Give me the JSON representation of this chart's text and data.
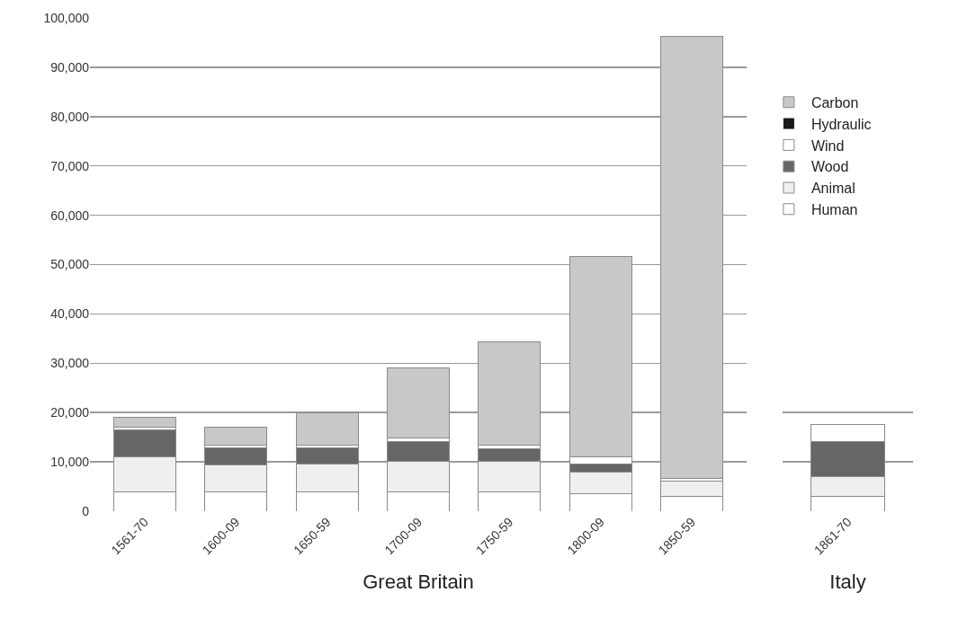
{
  "chart_data": [
    {
      "type": "bar",
      "stacked": true,
      "xlabel": "Great Britain",
      "categories": [
        "1561-70",
        "1600-09",
        "1650-59",
        "1700-09",
        "1750-59",
        "1800-09",
        "1850-59"
      ],
      "series": [
        {
          "name": "Human",
          "color": "#ffffff",
          "values": [
            4000,
            4000,
            4000,
            4000,
            4000,
            3500,
            3000
          ]
        },
        {
          "name": "Animal",
          "color": "#efefef",
          "values": [
            7000,
            5400,
            5600,
            6100,
            6100,
            4400,
            3100
          ]
        },
        {
          "name": "Wood",
          "color": "#666666",
          "values": [
            5400,
            3500,
            3300,
            4100,
            2600,
            1700,
            null
          ]
        },
        {
          "name": "Wind",
          "color": "#ffffff",
          "values": [
            700,
            500,
            500,
            700,
            700,
            1400,
            600
          ]
        },
        {
          "name": "Hydraulic",
          "color": "#1a1a1a",
          "values": [
            0,
            0,
            0,
            0,
            0,
            0,
            0
          ]
        },
        {
          "name": "Carbon",
          "color": "#c8c8c8",
          "values": [
            1900,
            3600,
            6600,
            14100,
            20900,
            40700,
            89500
          ]
        }
      ],
      "ylim": [
        0,
        100000
      ],
      "yticks": [
        {
          "value": 0,
          "label": "0"
        },
        {
          "value": 10000,
          "label": "10,000"
        },
        {
          "value": 20000,
          "label": "20,000"
        },
        {
          "value": 30000,
          "label": "30,000"
        },
        {
          "value": 40000,
          "label": "40,000"
        },
        {
          "value": 50000,
          "label": "50,000"
        },
        {
          "value": 60000,
          "label": "60,000"
        },
        {
          "value": 70000,
          "label": "70,000"
        },
        {
          "value": 80000,
          "label": "80,000"
        },
        {
          "value": 90000,
          "label": "90,000"
        },
        {
          "value": 100000,
          "label": "100,000"
        }
      ],
      "grid": "y",
      "legend": "right"
    },
    {
      "type": "bar",
      "stacked": true,
      "xlabel": "Italy",
      "categories": [
        "1861-70"
      ],
      "series": [
        {
          "color": "#ffffff",
          "values": [
            3000
          ]
        },
        {
          "color": "#efefef",
          "values": [
            4000
          ]
        },
        {
          "color": "#666666",
          "values": [
            7200
          ]
        },
        {
          "color": "#ffffff",
          "values": [
            3300
          ]
        },
        {
          "color": "#1a1a1a",
          "values": [
            0
          ]
        },
        {
          "color": "#c8c8c8",
          "values": [
            0
          ]
        }
      ],
      "ylim": [
        0,
        100000
      ],
      "yticks": [
        0,
        10000,
        20000
      ],
      "grid": "y",
      "tick_labels": "x"
    }
  ]
}
